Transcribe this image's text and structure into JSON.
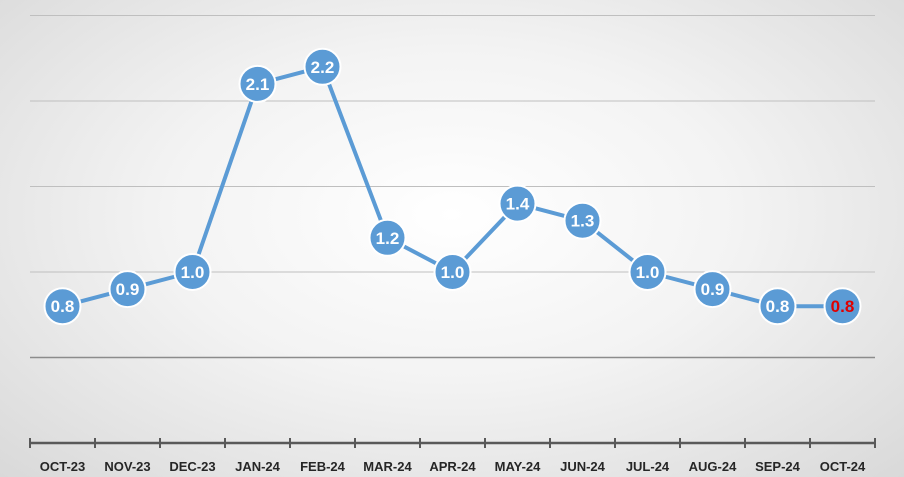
{
  "chart_data": {
    "type": "line",
    "categories": [
      "OCT-23",
      "NOV-23",
      "DEC-23",
      "JAN-24",
      "FEB-24",
      "MAR-24",
      "APR-24",
      "MAY-24",
      "JUN-24",
      "JUL-24",
      "AUG-24",
      "SEP-24",
      "OCT-24"
    ],
    "values": [
      0.8,
      0.9,
      1.0,
      2.1,
      2.2,
      1.2,
      1.0,
      1.4,
      1.3,
      1.0,
      0.9,
      0.8,
      0.8
    ],
    "data_labels": [
      "0.8",
      "0.9",
      "1.0",
      "2.1",
      "2.2",
      "1.2",
      "1.0",
      "1.4",
      "1.3",
      "1.0",
      "0.9",
      "0.8",
      "0.8"
    ],
    "title": "",
    "xlabel": "",
    "ylabel": "",
    "ylim": [
      0.0,
      2.5
    ],
    "y_gridlines": [
      0.5,
      1.0,
      1.5,
      2.0,
      2.5
    ],
    "y_tick_labels_shown": false,
    "grid": true,
    "legend": "none",
    "colors": {
      "line": "#5b9bd5",
      "marker_fill": "#5b9bd5",
      "marker_edge": "#ffffff",
      "label_text": "#ffffff",
      "highlight_label_text": "#e00000",
      "gridline": "#bfbfbf",
      "axis": "#595959",
      "tick_text": "#262626"
    },
    "highlight_index": 12
  }
}
